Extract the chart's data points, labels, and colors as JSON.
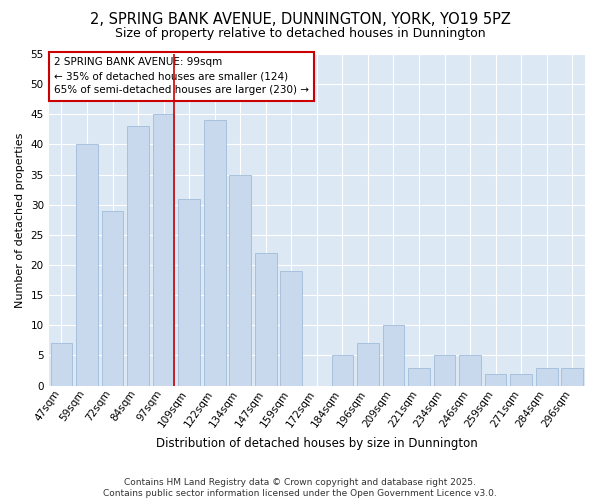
{
  "title": "2, SPRING BANK AVENUE, DUNNINGTON, YORK, YO19 5PZ",
  "subtitle": "Size of property relative to detached houses in Dunnington",
  "xlabel": "Distribution of detached houses by size in Dunnington",
  "ylabel": "Number of detached properties",
  "categories": [
    "47sqm",
    "59sqm",
    "72sqm",
    "84sqm",
    "97sqm",
    "109sqm",
    "122sqm",
    "134sqm",
    "147sqm",
    "159sqm",
    "172sqm",
    "184sqm",
    "196sqm",
    "209sqm",
    "221sqm",
    "234sqm",
    "246sqm",
    "259sqm",
    "271sqm",
    "284sqm",
    "296sqm"
  ],
  "values": [
    7,
    40,
    29,
    43,
    45,
    31,
    44,
    35,
    22,
    19,
    0,
    5,
    7,
    10,
    3,
    5,
    5,
    2,
    2,
    3,
    3
  ],
  "bar_color": "#c8d9ee",
  "bar_edge_color": "#a0bcd8",
  "vline_color": "#cc0000",
  "vline_x_index": 4,
  "annotation_text": "2 SPRING BANK AVENUE: 99sqm\n← 35% of detached houses are smaller (124)\n65% of semi-detached houses are larger (230) →",
  "annotation_box_facecolor": "#ffffff",
  "annotation_box_edgecolor": "#cc0000",
  "bg_color": "#ffffff",
  "plot_bg_color": "#dde8f5",
  "grid_color": "#ffffff",
  "ylim": [
    0,
    55
  ],
  "yticks": [
    0,
    5,
    10,
    15,
    20,
    25,
    30,
    35,
    40,
    45,
    50,
    55
  ],
  "footer": "Contains HM Land Registry data © Crown copyright and database right 2025.\nContains public sector information licensed under the Open Government Licence v3.0.",
  "title_fontsize": 10.5,
  "subtitle_fontsize": 9,
  "ylabel_fontsize": 8,
  "xlabel_fontsize": 8.5,
  "tick_fontsize": 7.5,
  "annotation_fontsize": 7.5,
  "footer_fontsize": 6.5
}
